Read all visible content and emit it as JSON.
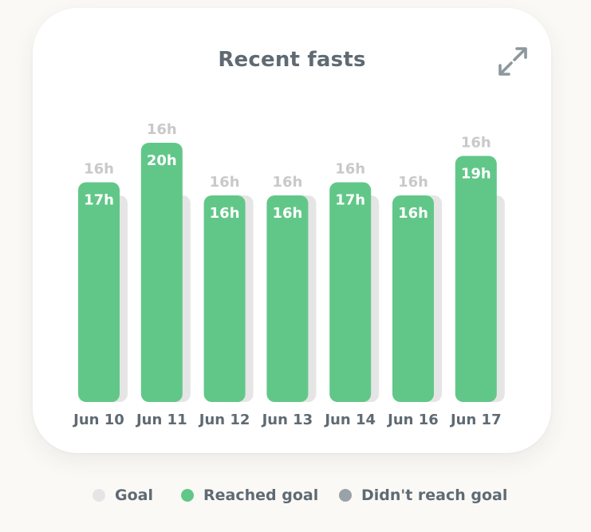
{
  "card": {
    "title": "Recent fasts",
    "expand_icon": "expand-arrows-icon"
  },
  "colors": {
    "reached": "#61c788",
    "not_reached": "#9aa2a8",
    "goal": "#e5e5e5",
    "label_muted": "#c9c9c9",
    "text": "#5f6a73"
  },
  "legend": {
    "goal": "Goal",
    "reached": "Reached goal",
    "not_reached": "Didn't reach goal"
  },
  "chart_data": {
    "type": "bar",
    "categories": [
      "Jun 10",
      "Jun 11",
      "Jun 12",
      "Jun 13",
      "Jun 14",
      "Jun 16",
      "Jun 17"
    ],
    "series": [
      {
        "name": "Goal",
        "values": [
          16,
          16,
          16,
          16,
          16,
          16,
          16
        ],
        "labels": [
          "16h",
          "16h",
          "16h",
          "16h",
          "16h",
          "16h",
          "16h"
        ]
      },
      {
        "name": "Reached goal",
        "values": [
          17,
          20,
          16,
          16,
          17,
          16,
          19
        ],
        "labels": [
          "17h",
          "20h",
          "16h",
          "16h",
          "17h",
          "16h",
          "19h"
        ]
      }
    ],
    "title": "Recent fasts",
    "xlabel": "",
    "ylabel": "",
    "legend": "bottom",
    "grid": false
  }
}
